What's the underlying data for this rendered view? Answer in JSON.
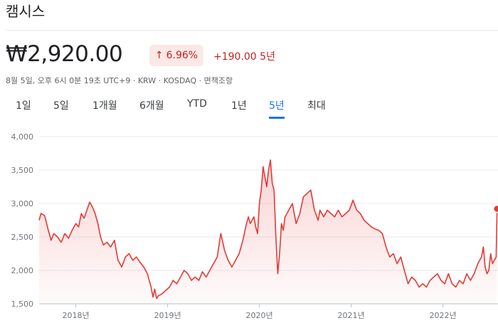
{
  "header": {
    "company_name": "캠시스",
    "price": "₩2,920.00",
    "change_percent": "6.96%",
    "change_arrow": "↑",
    "change_amount": "+190.00 5년",
    "meta": "8월 5일, 오후 6시 0분 19초 UTC+9 · KRW · KOSDAQ · 면책조항"
  },
  "tabs": [
    {
      "label": "1일",
      "active": false
    },
    {
      "label": "5일",
      "active": false
    },
    {
      "label": "1개월",
      "active": false
    },
    {
      "label": "6개월",
      "active": false
    },
    {
      "label": "YTD",
      "active": false
    },
    {
      "label": "1년",
      "active": false
    },
    {
      "label": "5년",
      "active": true
    },
    {
      "label": "최대",
      "active": false
    }
  ],
  "colors": {
    "accent": "#1a73e8",
    "line": "#e53935",
    "negative_bg": "#fce8e6",
    "negative_text": "#c5221f"
  },
  "chart_data": {
    "type": "area",
    "ylim": [
      1500,
      4000
    ],
    "yticks": [
      "4,000",
      "3,500",
      "3,000",
      "2,500",
      "2,000",
      "1,500"
    ],
    "ytick_values": [
      4000,
      3500,
      3000,
      2500,
      2000,
      1500
    ],
    "xticks": [
      {
        "label": "2018년",
        "x": 2018.0
      },
      {
        "label": "2019년",
        "x": 2019.0
      },
      {
        "label": "2020년",
        "x": 2020.0
      },
      {
        "label": "2021년",
        "x": 2021.0
      },
      {
        "label": "2022년",
        "x": 2022.0
      }
    ],
    "xlim": [
      2017.6,
      2022.6
    ],
    "series": [
      {
        "points": [
          [
            2017.6,
            2750
          ],
          [
            2017.62,
            2850
          ],
          [
            2017.66,
            2820
          ],
          [
            2017.7,
            2600
          ],
          [
            2017.73,
            2450
          ],
          [
            2017.76,
            2550
          ],
          [
            2017.8,
            2500
          ],
          [
            2017.84,
            2420
          ],
          [
            2017.88,
            2550
          ],
          [
            2017.92,
            2480
          ],
          [
            2017.96,
            2600
          ],
          [
            2018.0,
            2700
          ],
          [
            2018.03,
            2650
          ],
          [
            2018.06,
            2850
          ],
          [
            2018.09,
            2780
          ],
          [
            2018.12,
            2900
          ],
          [
            2018.15,
            3020
          ],
          [
            2018.18,
            2950
          ],
          [
            2018.21,
            2850
          ],
          [
            2018.24,
            2700
          ],
          [
            2018.27,
            2500
          ],
          [
            2018.3,
            2380
          ],
          [
            2018.34,
            2420
          ],
          [
            2018.38,
            2350
          ],
          [
            2018.42,
            2450
          ],
          [
            2018.46,
            2150
          ],
          [
            2018.5,
            2050
          ],
          [
            2018.54,
            2200
          ],
          [
            2018.58,
            2250
          ],
          [
            2018.62,
            2150
          ],
          [
            2018.66,
            2200
          ],
          [
            2018.7,
            2120
          ],
          [
            2018.74,
            2050
          ],
          [
            2018.78,
            1950
          ],
          [
            2018.82,
            1750
          ],
          [
            2018.84,
            1600
          ],
          [
            2018.86,
            1720
          ],
          [
            2018.88,
            1580
          ],
          [
            2018.9,
            1620
          ],
          [
            2018.94,
            1650
          ],
          [
            2018.98,
            1700
          ],
          [
            2019.02,
            1750
          ],
          [
            2019.06,
            1850
          ],
          [
            2019.1,
            1800
          ],
          [
            2019.14,
            1900
          ],
          [
            2019.18,
            2000
          ],
          [
            2019.22,
            1950
          ],
          [
            2019.26,
            1850
          ],
          [
            2019.3,
            1900
          ],
          [
            2019.34,
            1850
          ],
          [
            2019.38,
            1980
          ],
          [
            2019.42,
            1900
          ],
          [
            2019.46,
            2000
          ],
          [
            2019.5,
            2100
          ],
          [
            2019.54,
            2200
          ],
          [
            2019.58,
            2550
          ],
          [
            2019.62,
            2300
          ],
          [
            2019.66,
            2150
          ],
          [
            2019.7,
            2050
          ],
          [
            2019.74,
            2150
          ],
          [
            2019.78,
            2250
          ],
          [
            2019.82,
            2450
          ],
          [
            2019.86,
            2700
          ],
          [
            2019.88,
            2800
          ],
          [
            2019.9,
            2700
          ],
          [
            2019.94,
            2800
          ],
          [
            2019.96,
            2650
          ],
          [
            2019.98,
            2550
          ],
          [
            2020.0,
            3000
          ],
          [
            2020.02,
            3200
          ],
          [
            2020.04,
            3550
          ],
          [
            2020.06,
            3400
          ],
          [
            2020.08,
            3250
          ],
          [
            2020.1,
            3500
          ],
          [
            2020.12,
            3650
          ],
          [
            2020.14,
            3300
          ],
          [
            2020.16,
            3200
          ],
          [
            2020.18,
            2500
          ],
          [
            2020.2,
            1950
          ],
          [
            2020.22,
            2250
          ],
          [
            2020.24,
            2700
          ],
          [
            2020.26,
            2600
          ],
          [
            2020.28,
            2800
          ],
          [
            2020.32,
            2900
          ],
          [
            2020.36,
            3000
          ],
          [
            2020.4,
            2700
          ],
          [
            2020.44,
            2850
          ],
          [
            2020.48,
            3100
          ],
          [
            2020.52,
            3150
          ],
          [
            2020.56,
            3200
          ],
          [
            2020.6,
            2900
          ],
          [
            2020.64,
            2750
          ],
          [
            2020.66,
            2900
          ],
          [
            2020.7,
            2800
          ],
          [
            2020.74,
            2900
          ],
          [
            2020.78,
            2850
          ],
          [
            2020.82,
            2800
          ],
          [
            2020.86,
            2900
          ],
          [
            2020.9,
            2800
          ],
          [
            2020.94,
            2850
          ],
          [
            2020.98,
            2900
          ],
          [
            2021.02,
            3050
          ],
          [
            2021.06,
            2900
          ],
          [
            2021.1,
            2850
          ],
          [
            2021.14,
            2750
          ],
          [
            2021.18,
            2700
          ],
          [
            2021.22,
            2650
          ],
          [
            2021.26,
            2620
          ],
          [
            2021.3,
            2600
          ],
          [
            2021.34,
            2550
          ],
          [
            2021.38,
            2350
          ],
          [
            2021.42,
            2200
          ],
          [
            2021.46,
            2250
          ],
          [
            2021.5,
            2100
          ],
          [
            2021.54,
            2200
          ],
          [
            2021.58,
            2000
          ],
          [
            2021.62,
            1800
          ],
          [
            2021.66,
            1900
          ],
          [
            2021.7,
            1850
          ],
          [
            2021.74,
            1750
          ],
          [
            2021.78,
            1800
          ],
          [
            2021.82,
            1750
          ],
          [
            2021.86,
            1850
          ],
          [
            2021.9,
            1900
          ],
          [
            2021.94,
            1950
          ],
          [
            2021.98,
            1850
          ],
          [
            2022.02,
            1800
          ],
          [
            2022.06,
            1950
          ],
          [
            2022.1,
            1800
          ],
          [
            2022.14,
            1750
          ],
          [
            2022.18,
            1850
          ],
          [
            2022.22,
            1800
          ],
          [
            2022.26,
            1950
          ],
          [
            2022.3,
            1850
          ],
          [
            2022.34,
            1950
          ],
          [
            2022.38,
            2100
          ],
          [
            2022.42,
            2200
          ],
          [
            2022.44,
            2350
          ],
          [
            2022.46,
            2050
          ],
          [
            2022.48,
            1950
          ],
          [
            2022.5,
            2000
          ],
          [
            2022.52,
            2250
          ],
          [
            2022.54,
            2100
          ],
          [
            2022.56,
            2150
          ],
          [
            2022.58,
            2200
          ],
          [
            2022.59,
            2920
          ]
        ]
      }
    ]
  }
}
